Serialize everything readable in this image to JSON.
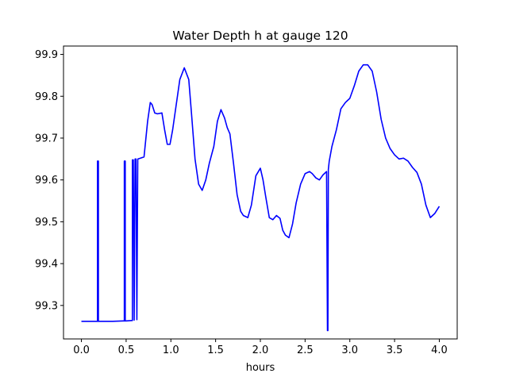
{
  "chart_data": {
    "type": "line",
    "title": "Water Depth h at gauge 120",
    "xlabel": "hours",
    "ylabel": "",
    "xlim": [
      -0.2,
      4.2
    ],
    "ylim": [
      99.22,
      99.92
    ],
    "xticks": [
      0.0,
      0.5,
      1.0,
      1.5,
      2.0,
      2.5,
      3.0,
      3.5,
      4.0
    ],
    "xtick_labels": [
      "0.0",
      "0.5",
      "1.0",
      "1.5",
      "2.0",
      "2.5",
      "3.0",
      "3.5",
      "4.0"
    ],
    "yticks": [
      99.3,
      99.4,
      99.5,
      99.6,
      99.7,
      99.8,
      99.9
    ],
    "ytick_labels": [
      "99.3",
      "99.4",
      "99.5",
      "99.6",
      "99.7",
      "99.8",
      "99.9"
    ],
    "grid": false,
    "series": [
      {
        "color": "#0000ff",
        "x": [
          0.0,
          0.17,
          0.18,
          0.18,
          0.19,
          0.19,
          0.2,
          0.35,
          0.47,
          0.48,
          0.48,
          0.49,
          0.49,
          0.5,
          0.56,
          0.57,
          0.57,
          0.58,
          0.59,
          0.59,
          0.6,
          0.61,
          0.62,
          0.62,
          0.63,
          0.63,
          0.66,
          0.7,
          0.74,
          0.77,
          0.79,
          0.82,
          0.85,
          0.9,
          0.93,
          0.96,
          0.99,
          1.02,
          1.06,
          1.1,
          1.15,
          1.2,
          1.23,
          1.27,
          1.31,
          1.35,
          1.39,
          1.43,
          1.48,
          1.52,
          1.56,
          1.6,
          1.63,
          1.66,
          1.7,
          1.74,
          1.78,
          1.81,
          1.86,
          1.9,
          1.95,
          2.0,
          2.03,
          2.06,
          2.1,
          2.14,
          2.18,
          2.22,
          2.25,
          2.28,
          2.32,
          2.36,
          2.4,
          2.45,
          2.5,
          2.55,
          2.58,
          2.62,
          2.66,
          2.7,
          2.74,
          2.75,
          2.755,
          2.76,
          2.77,
          2.8,
          2.85,
          2.9,
          2.95,
          3.0,
          3.05,
          3.1,
          3.15,
          3.2,
          3.25,
          3.3,
          3.35,
          3.4,
          3.45,
          3.5,
          3.55,
          3.6,
          3.65,
          3.7,
          3.75,
          3.8,
          3.85,
          3.9,
          3.95,
          4.0
        ],
        "y": [
          99.262,
          99.262,
          99.262,
          99.645,
          99.645,
          99.262,
          99.262,
          99.262,
          99.263,
          99.263,
          99.645,
          99.645,
          99.263,
          99.263,
          99.264,
          99.264,
          99.648,
          99.648,
          99.265,
          99.265,
          99.65,
          99.65,
          99.266,
          99.266,
          99.65,
          99.65,
          99.652,
          99.655,
          99.74,
          99.785,
          99.78,
          99.76,
          99.758,
          99.76,
          99.72,
          99.685,
          99.685,
          99.72,
          99.78,
          99.84,
          99.868,
          99.84,
          99.76,
          99.65,
          99.59,
          99.575,
          99.6,
          99.64,
          99.68,
          99.74,
          99.768,
          99.748,
          99.725,
          99.71,
          99.64,
          99.565,
          99.525,
          99.515,
          99.51,
          99.54,
          99.61,
          99.628,
          99.6,
          99.56,
          99.51,
          99.505,
          99.515,
          99.508,
          99.48,
          99.468,
          99.462,
          99.495,
          99.545,
          99.59,
          99.615,
          99.62,
          99.615,
          99.605,
          99.6,
          99.612,
          99.62,
          99.24,
          99.24,
          99.625,
          99.645,
          99.68,
          99.72,
          99.77,
          99.785,
          99.795,
          99.825,
          99.86,
          99.875,
          99.875,
          99.86,
          99.81,
          99.745,
          99.7,
          99.675,
          99.66,
          99.65,
          99.652,
          99.645,
          99.63,
          99.618,
          99.59,
          99.54,
          99.51,
          99.52,
          99.537
        ]
      }
    ]
  }
}
